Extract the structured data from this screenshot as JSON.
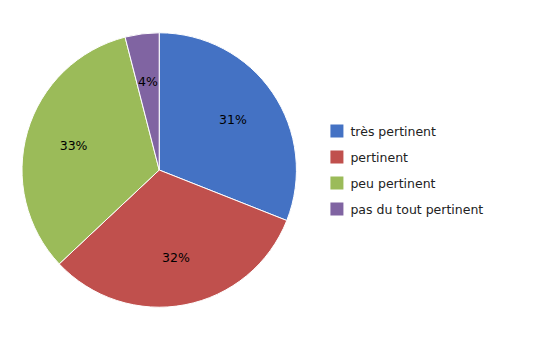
{
  "chart_data": {
    "type": "pie",
    "categories": [
      "très pertinent",
      "pertinent",
      "peu pertinent",
      "pas du tout pertinent"
    ],
    "values": [
      31,
      32,
      33,
      4
    ],
    "value_labels": [
      "31%",
      "32%",
      "33%",
      "4%"
    ],
    "colors": [
      "#4472C4",
      "#C0504D",
      "#9BBB59",
      "#8064A2"
    ],
    "data_labels": true,
    "legend": "right"
  }
}
